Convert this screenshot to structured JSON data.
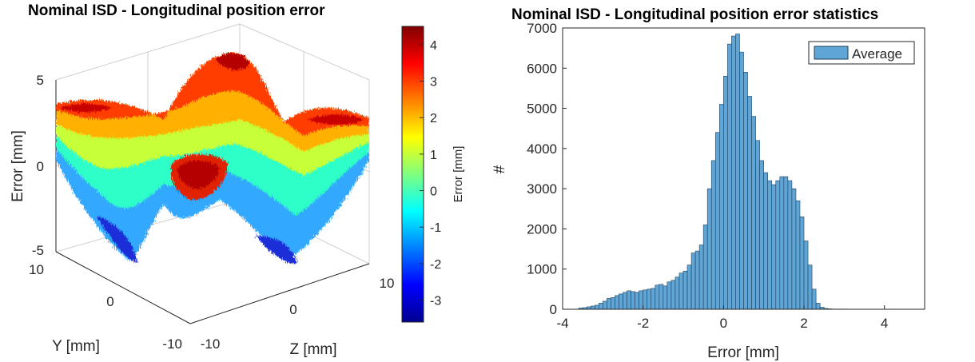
{
  "chart_data": [
    {
      "type": "surface",
      "title": "Nominal ISD - Longitudinal position error",
      "xlabel": "Z [mm]",
      "ylabel": "Y [mm]",
      "zlabel": "Error [mm]",
      "x_ticks": [
        "-10",
        "0",
        "10"
      ],
      "y_ticks": [
        "10",
        "0",
        "-10"
      ],
      "z_ticks": [
        "5",
        "0",
        "-5"
      ],
      "zlim": [
        -5,
        5
      ],
      "colorbar": {
        "label": "Error [mm]",
        "colormap": "jet",
        "range": [
          -3.6,
          4.5
        ],
        "ticks": [
          "4",
          "3",
          "2",
          "1",
          "0",
          "-1",
          "-2",
          "-3"
        ]
      }
    },
    {
      "type": "bar",
      "title": "Nominal ISD - Longitudinal position error statistics",
      "xlabel": "Error [mm]",
      "ylabel": "#",
      "xlim": [
        -4,
        5
      ],
      "ylim": [
        0,
        7000
      ],
      "x_ticks": [
        "-4",
        "-2",
        "0",
        "2",
        "4"
      ],
      "y_ticks": [
        "0",
        "1000",
        "2000",
        "3000",
        "4000",
        "5000",
        "6000",
        "7000"
      ],
      "bin_start": -3.6,
      "bin_width": 0.1,
      "series": [
        {
          "name": "Average",
          "color": "#5fa5d6",
          "values": [
            30,
            40,
            60,
            80,
            100,
            150,
            200,
            270,
            290,
            340,
            380,
            420,
            460,
            440,
            420,
            460,
            480,
            500,
            520,
            600,
            620,
            580,
            680,
            720,
            800,
            900,
            950,
            1100,
            1400,
            1450,
            1600,
            2100,
            3000,
            3700,
            4400,
            5100,
            5800,
            6600,
            6800,
            6850,
            6400,
            5900,
            5300,
            4800,
            4200,
            3700,
            3400,
            3200,
            3100,
            3200,
            3300,
            3300,
            3200,
            3000,
            2700,
            2300,
            1700,
            1100,
            500,
            150,
            50,
            20,
            10,
            5,
            5,
            5,
            5
          ]
        }
      ]
    }
  ],
  "colors": {
    "bar_fill": "#5fa5d6",
    "bar_edge": "#1f3f5a",
    "axis": "#262626",
    "title": "#000000"
  }
}
